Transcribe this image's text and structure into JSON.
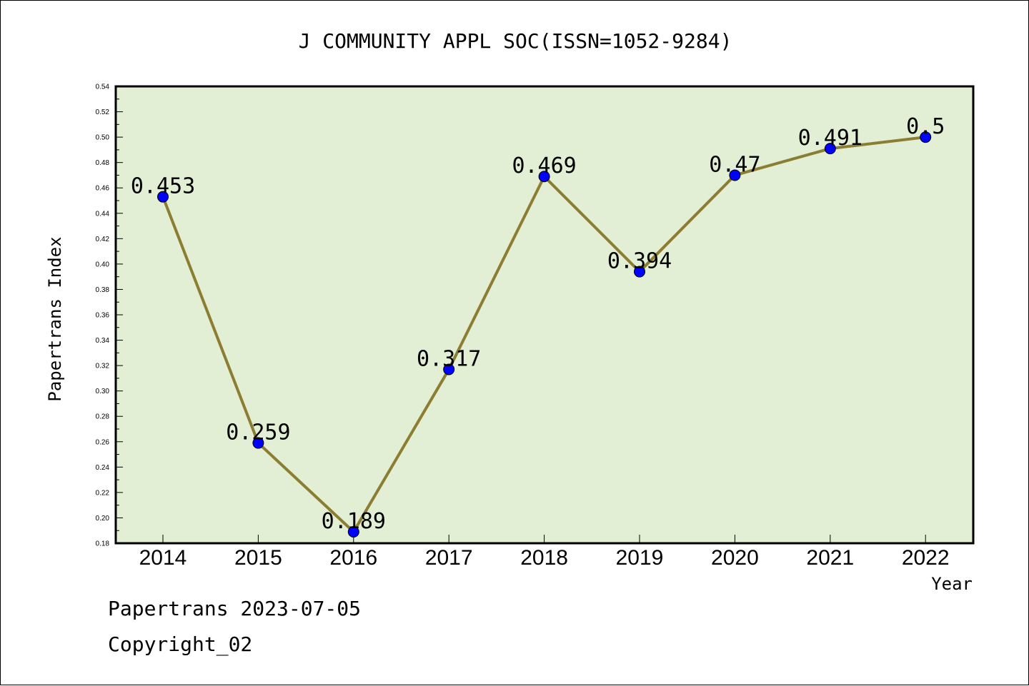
{
  "chart_data": {
    "type": "line",
    "title": "J COMMUNITY APPL SOC(ISSN=1052-9284)",
    "xlabel": "Year",
    "ylabel": "Papertrans Index",
    "categories": [
      "2014",
      "2015",
      "2016",
      "2017",
      "2018",
      "2019",
      "2020",
      "2021",
      "2022"
    ],
    "series": [
      {
        "values": [
          0.453,
          0.259,
          0.189,
          0.317,
          0.469,
          0.394,
          0.47,
          0.491,
          0.5
        ],
        "labels": [
          "0.453",
          "0.259",
          "0.189",
          "0.317",
          "0.469",
          "0.394",
          "0.47",
          "0.491",
          "0.5"
        ]
      }
    ],
    "ylim": [
      0.18,
      0.54
    ],
    "yticks": [
      "0.18",
      "0.20",
      "0.22",
      "0.24",
      "0.26",
      "0.28",
      "0.30",
      "0.32",
      "0.34",
      "0.36",
      "0.38",
      "0.40",
      "0.42",
      "0.44",
      "0.46",
      "0.48",
      "0.50",
      "0.52",
      "0.54"
    ],
    "grid": false,
    "legend": "none",
    "colors": {
      "plot_background": "#e2efd4",
      "line": "#8b7d32",
      "marker": "#0000ff",
      "axes": "#000000"
    }
  },
  "footer": {
    "line1": "Papertrans 2023-07-05",
    "line2": "Copyright_02"
  }
}
